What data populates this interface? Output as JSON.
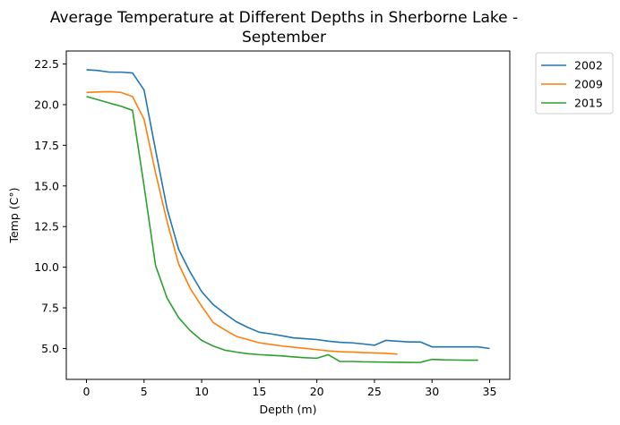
{
  "chart_data": {
    "type": "line",
    "title_lines": [
      "Average Temperature at Different Depths in Sherborne Lake -",
      "September"
    ],
    "xlabel": "Depth (m)",
    "ylabel": "Temp (C°)",
    "xlim": [
      -1.75,
      36.75
    ],
    "ylim": [
      3.1,
      23.3
    ],
    "xticks": [
      0,
      5,
      10,
      15,
      20,
      25,
      30,
      35
    ],
    "yticks": [
      5.0,
      7.5,
      10.0,
      12.5,
      15.0,
      17.5,
      20.0,
      22.5
    ],
    "ytick_labels": [
      "5.0",
      "7.5",
      "10.0",
      "12.5",
      "15.0",
      "17.5",
      "20.0",
      "22.5"
    ],
    "legend_position": "outside-upper-right",
    "grid": false,
    "series": [
      {
        "name": "2002",
        "color": "#1f77b4",
        "x": [
          0,
          1,
          2,
          3,
          4,
          5,
          6,
          7,
          8,
          9,
          10,
          11,
          12,
          13,
          14,
          15,
          16,
          17,
          18,
          19,
          20,
          21,
          22,
          23,
          24,
          25,
          26,
          27,
          28,
          29,
          30,
          31,
          32,
          33,
          34,
          35
        ],
        "y": [
          22.15,
          22.1,
          22.0,
          22.0,
          21.95,
          20.9,
          17.2,
          13.6,
          11.1,
          9.7,
          8.5,
          7.7,
          7.15,
          6.65,
          6.3,
          6.0,
          5.9,
          5.78,
          5.65,
          5.6,
          5.55,
          5.45,
          5.38,
          5.35,
          5.28,
          5.2,
          5.5,
          5.45,
          5.4,
          5.4,
          5.1,
          5.1,
          5.1,
          5.1,
          5.1,
          5.0
        ]
      },
      {
        "name": "2009",
        "color": "#ff7f0e",
        "x": [
          0,
          1,
          2,
          3,
          4,
          5,
          6,
          7,
          8,
          9,
          10,
          11,
          12,
          13,
          14,
          15,
          16,
          17,
          18,
          19,
          20,
          21,
          22,
          23,
          24,
          25,
          26,
          27
        ],
        "y": [
          20.75,
          20.78,
          20.8,
          20.75,
          20.5,
          19.1,
          15.8,
          12.8,
          10.2,
          8.7,
          7.6,
          6.6,
          6.15,
          5.75,
          5.55,
          5.35,
          5.25,
          5.15,
          5.08,
          5.0,
          4.93,
          4.85,
          4.8,
          4.78,
          4.75,
          4.73,
          4.7,
          4.65
        ]
      },
      {
        "name": "2015",
        "color": "#2ca02c",
        "x": [
          0,
          1,
          2,
          3,
          4,
          5,
          6,
          7,
          8,
          9,
          10,
          11,
          12,
          13,
          14,
          15,
          16,
          17,
          18,
          19,
          20,
          21,
          22,
          23,
          24,
          25,
          26,
          27,
          28,
          29,
          30,
          31,
          32,
          33,
          34
        ],
        "y": [
          20.5,
          20.3,
          20.1,
          19.9,
          19.65,
          15.0,
          10.1,
          8.1,
          6.9,
          6.1,
          5.5,
          5.15,
          4.9,
          4.78,
          4.68,
          4.62,
          4.58,
          4.54,
          4.48,
          4.43,
          4.4,
          4.62,
          4.2,
          4.2,
          4.18,
          4.17,
          4.16,
          4.15,
          4.14,
          4.15,
          4.33,
          4.3,
          4.29,
          4.28,
          4.28
        ]
      }
    ]
  }
}
